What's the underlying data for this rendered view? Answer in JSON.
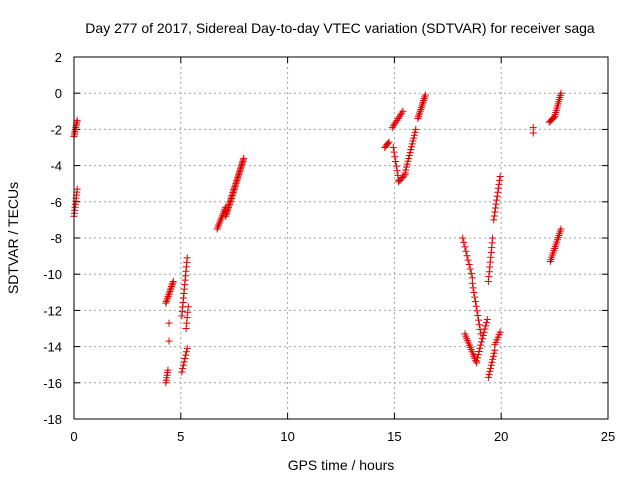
{
  "chart_data": {
    "type": "scatter",
    "title": "Day 277 of 2017, Sidereal Day-to-day VTEC variation (SDTVAR) for receiver saga",
    "xlabel": "GPS time / hours",
    "ylabel": "SDTVAR / TECUs",
    "xlim": [
      0,
      25
    ],
    "ylim": [
      -18,
      2
    ],
    "xticks": [
      0,
      5,
      10,
      15,
      20,
      25
    ],
    "yticks": [
      -18,
      -16,
      -14,
      -12,
      -10,
      -8,
      -6,
      -4,
      -2,
      0,
      2
    ],
    "grid": true,
    "marker": "plus",
    "color": "#e00000",
    "segments": [
      {
        "x0": 0.0,
        "y0": -2.4,
        "x1": 0.15,
        "y1": -1.5,
        "n": 10
      },
      {
        "x0": 0.0,
        "y0": -6.8,
        "x1": 0.15,
        "y1": -5.3,
        "n": 10
      },
      {
        "x0": 4.3,
        "y0": -11.6,
        "x1": 4.65,
        "y1": -10.4,
        "n": 14
      },
      {
        "x0": 4.3,
        "y0": -16.0,
        "x1": 4.4,
        "y1": -15.3,
        "n": 6
      },
      {
        "x0": 4.45,
        "y0": -12.7,
        "x1": 4.45,
        "y1": -12.7,
        "n": 1
      },
      {
        "x0": 4.45,
        "y0": -13.7,
        "x1": 4.45,
        "y1": -13.7,
        "n": 1
      },
      {
        "x0": 5.05,
        "y0": -15.4,
        "x1": 5.3,
        "y1": -14.1,
        "n": 8
      },
      {
        "x0": 5.05,
        "y0": -12.3,
        "x1": 5.3,
        "y1": -9.1,
        "n": 14
      },
      {
        "x0": 5.25,
        "y0": -13.0,
        "x1": 5.35,
        "y1": -11.8,
        "n": 5
      },
      {
        "x0": 6.7,
        "y0": -7.5,
        "x1": 7.1,
        "y1": -6.3,
        "n": 12
      },
      {
        "x0": 7.1,
        "y0": -6.8,
        "x1": 7.95,
        "y1": -3.6,
        "n": 40
      },
      {
        "x0": 14.55,
        "y0": -3.0,
        "x1": 14.75,
        "y1": -2.7,
        "n": 5
      },
      {
        "x0": 14.9,
        "y0": -1.9,
        "x1": 15.4,
        "y1": -1.0,
        "n": 10
      },
      {
        "x0": 14.95,
        "y0": -3.0,
        "x1": 15.2,
        "y1": -4.8,
        "n": 8
      },
      {
        "x0": 15.2,
        "y0": -4.9,
        "x1": 15.5,
        "y1": -4.5,
        "n": 6
      },
      {
        "x0": 15.5,
        "y0": -4.4,
        "x1": 16.0,
        "y1": -2.0,
        "n": 16
      },
      {
        "x0": 16.1,
        "y0": -1.4,
        "x1": 16.45,
        "y1": -0.1,
        "n": 14
      },
      {
        "x0": 18.2,
        "y0": -8.0,
        "x1": 18.65,
        "y1": -10.2,
        "n": 10
      },
      {
        "x0": 18.65,
        "y0": -10.5,
        "x1": 19.05,
        "y1": -13.3,
        "n": 12
      },
      {
        "x0": 18.3,
        "y0": -13.3,
        "x1": 18.85,
        "y1": -14.9,
        "n": 14
      },
      {
        "x0": 18.85,
        "y0": -14.8,
        "x1": 19.35,
        "y1": -12.5,
        "n": 14
      },
      {
        "x0": 19.4,
        "y0": -15.7,
        "x1": 19.7,
        "y1": -14.2,
        "n": 10
      },
      {
        "x0": 19.7,
        "y0": -13.9,
        "x1": 19.95,
        "y1": -13.2,
        "n": 6
      },
      {
        "x0": 19.4,
        "y0": -10.4,
        "x1": 19.6,
        "y1": -8.0,
        "n": 10
      },
      {
        "x0": 19.65,
        "y0": -7.0,
        "x1": 19.95,
        "y1": -4.6,
        "n": 12
      },
      {
        "x0": 21.5,
        "y0": -2.2,
        "x1": 21.5,
        "y1": -1.9,
        "n": 2
      },
      {
        "x0": 22.25,
        "y0": -1.6,
        "x1": 22.5,
        "y1": -1.3,
        "n": 6
      },
      {
        "x0": 22.5,
        "y0": -1.3,
        "x1": 22.8,
        "y1": 0.0,
        "n": 12
      },
      {
        "x0": 22.3,
        "y0": -9.3,
        "x1": 22.8,
        "y1": -7.5,
        "n": 16
      }
    ]
  }
}
